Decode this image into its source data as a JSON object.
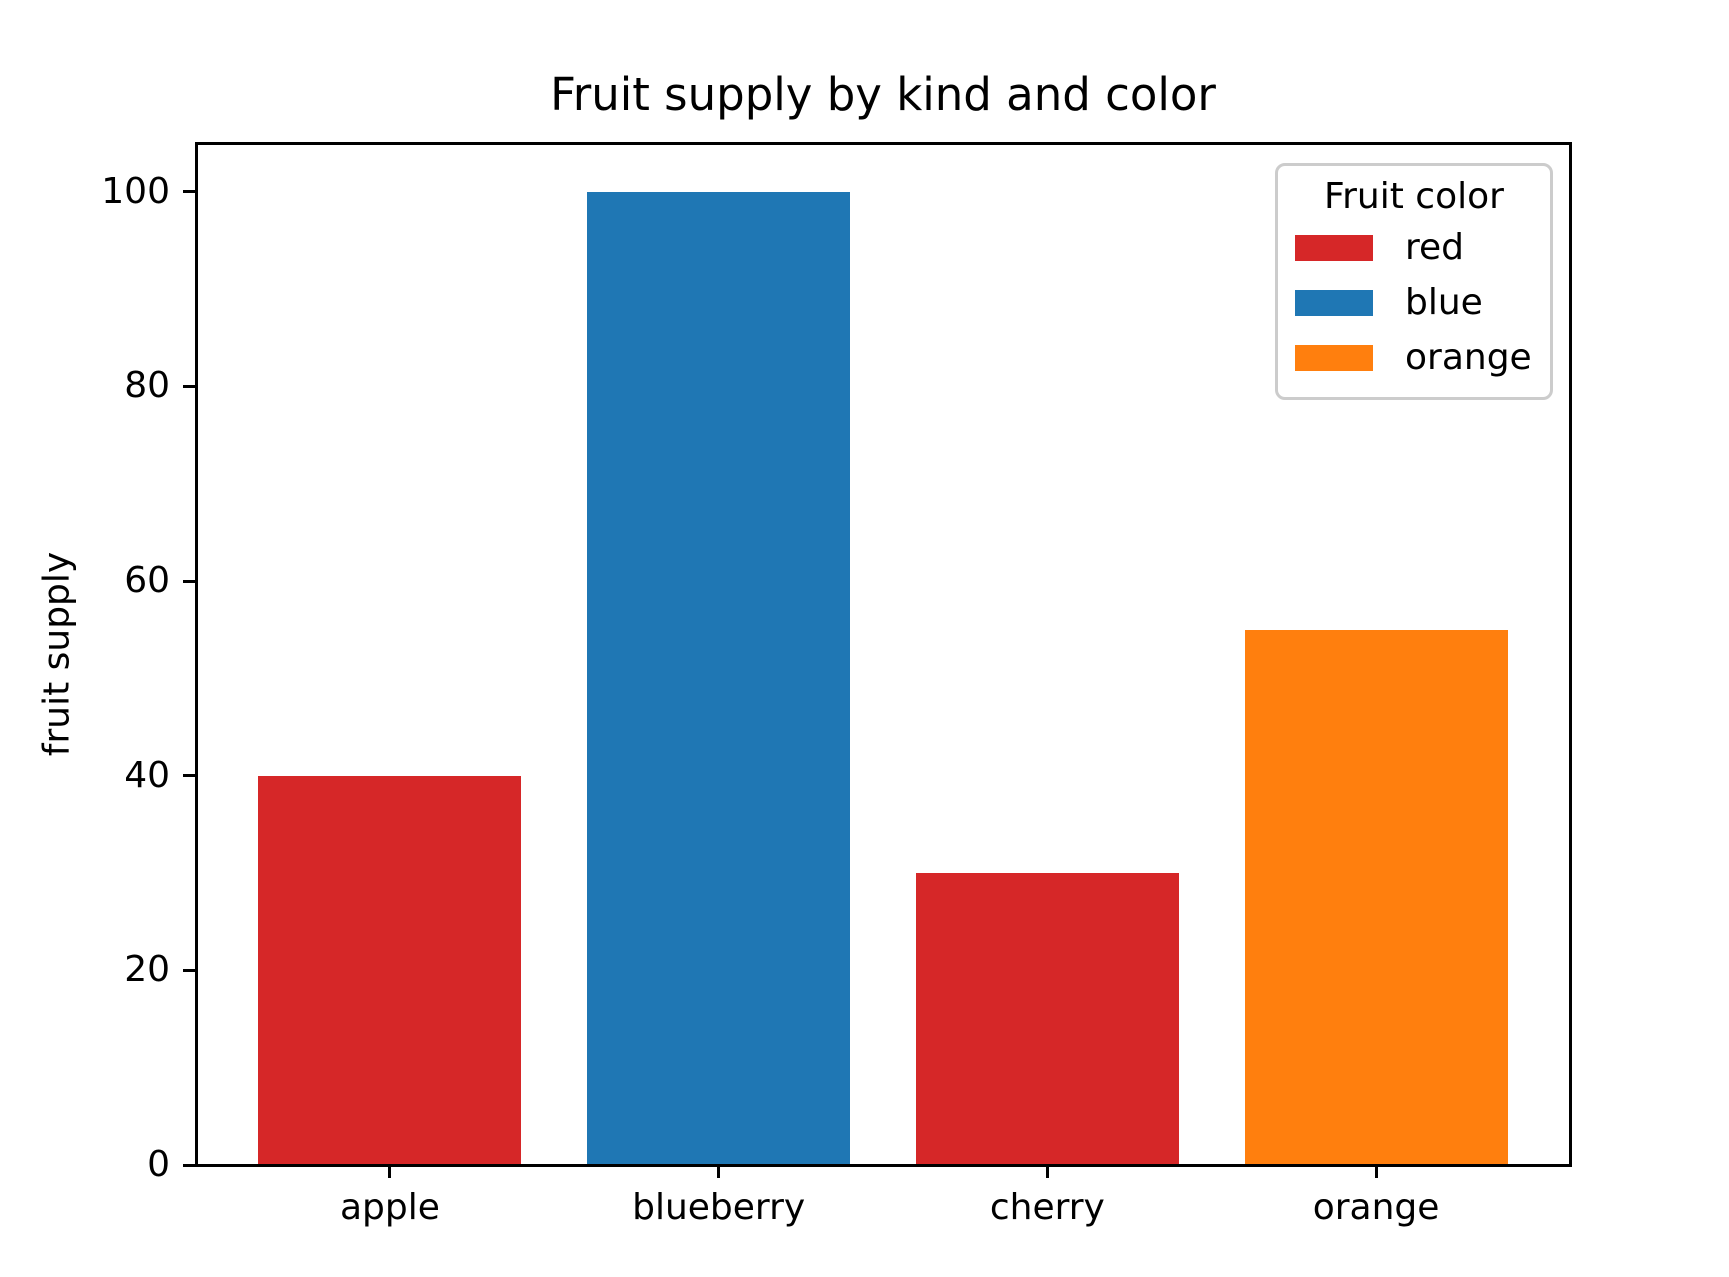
{
  "chart_data": {
    "type": "bar",
    "title": "Fruit supply by kind and color",
    "xlabel": "",
    "ylabel": "fruit supply",
    "categories": [
      "apple",
      "blueberry",
      "cherry",
      "orange"
    ],
    "values": [
      40,
      100,
      30,
      55
    ],
    "bar_colors": [
      "#d62728",
      "#1f77b4",
      "#d62728",
      "#ff7f0e"
    ],
    "yticks": [
      0,
      20,
      40,
      60,
      80,
      100
    ],
    "ylim": [
      0,
      105
    ],
    "grid": false,
    "legend": {
      "title": "Fruit color",
      "position": "upper right",
      "entries": [
        {
          "label": "red",
          "color": "#d62728"
        },
        {
          "label": "blue",
          "color": "#1f77b4"
        },
        {
          "label": "orange",
          "color": "#ff7f0e"
        }
      ]
    },
    "colors": {
      "background": "#ffffff",
      "axis": "#000000",
      "text": "#000000",
      "legend_border": "#cccccc"
    }
  }
}
